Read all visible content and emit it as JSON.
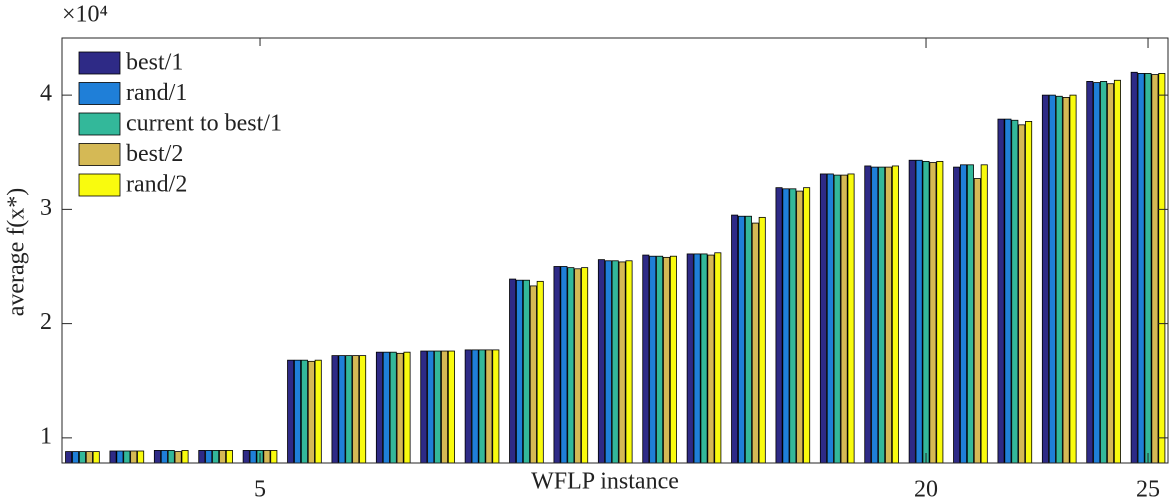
{
  "chart_data": {
    "type": "bar",
    "y_label": "average f(x*)",
    "x_label": "WFLP instance",
    "y_exponent_label": "×10⁴",
    "x": [
      1,
      2,
      3,
      4,
      5,
      6,
      7,
      8,
      9,
      10,
      11,
      12,
      13,
      14,
      15,
      16,
      17,
      18,
      19,
      20,
      21,
      22,
      23,
      24,
      25
    ],
    "xlim": [
      0.54,
      25.45
    ],
    "xticks": [
      5,
      20,
      25
    ],
    "ylim": [
      0.78,
      4.5
    ],
    "yticks": [
      1,
      2,
      3,
      4
    ],
    "legend": "upper left",
    "series": [
      {
        "name": "best/1",
        "color": "#2e2a86",
        "values": [
          0.88,
          0.885,
          0.89,
          0.89,
          0.89,
          1.68,
          1.72,
          1.75,
          1.76,
          1.77,
          2.39,
          2.5,
          2.56,
          2.6,
          2.61,
          2.95,
          3.19,
          3.31,
          3.38,
          3.43,
          3.37,
          3.79,
          4.0,
          4.12,
          4.2
        ]
      },
      {
        "name": "rand/1",
        "color": "#1f7fd8",
        "values": [
          0.88,
          0.885,
          0.89,
          0.89,
          0.89,
          1.68,
          1.72,
          1.75,
          1.76,
          1.77,
          2.38,
          2.5,
          2.55,
          2.59,
          2.61,
          2.94,
          3.18,
          3.31,
          3.37,
          3.43,
          3.39,
          3.79,
          4.0,
          4.11,
          4.19
        ]
      },
      {
        "name": "current to best/1",
        "color": "#33b89a",
        "values": [
          0.88,
          0.885,
          0.89,
          0.89,
          0.89,
          1.68,
          1.72,
          1.75,
          1.76,
          1.77,
          2.38,
          2.49,
          2.55,
          2.59,
          2.61,
          2.94,
          3.18,
          3.3,
          3.37,
          3.42,
          3.39,
          3.78,
          3.99,
          4.12,
          4.19
        ]
      },
      {
        "name": "best/2",
        "color": "#d5b955",
        "values": [
          0.88,
          0.885,
          0.88,
          0.89,
          0.89,
          1.67,
          1.72,
          1.74,
          1.76,
          1.77,
          2.33,
          2.48,
          2.54,
          2.58,
          2.6,
          2.88,
          3.16,
          3.3,
          3.37,
          3.41,
          3.27,
          3.74,
          3.98,
          4.1,
          4.18
        ]
      },
      {
        "name": "rand/2",
        "color": "#f9fb0e",
        "values": [
          0.88,
          0.885,
          0.89,
          0.89,
          0.89,
          1.68,
          1.72,
          1.75,
          1.76,
          1.77,
          2.37,
          2.49,
          2.55,
          2.59,
          2.62,
          2.93,
          3.19,
          3.31,
          3.38,
          3.42,
          3.39,
          3.77,
          4.0,
          4.13,
          4.19
        ]
      }
    ]
  }
}
